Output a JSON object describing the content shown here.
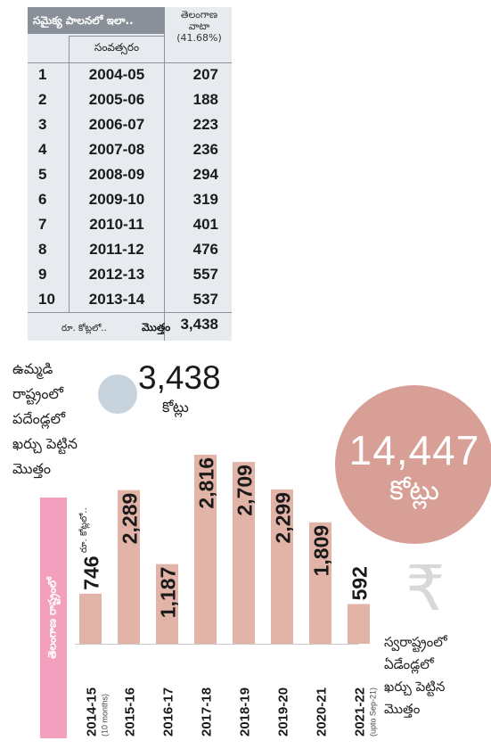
{
  "table": {
    "title": "సమైక్య పాలనలో ఇలా..",
    "share_header": [
      "తెలంగాణ",
      "వాటా",
      "(41.68%)"
    ],
    "year_header": "సంవత్సరం",
    "rows": [
      {
        "num": "1",
        "year": "2004-05",
        "value": "207"
      },
      {
        "num": "2",
        "year": "2005-06",
        "value": "188"
      },
      {
        "num": "3",
        "year": "2006-07",
        "value": "223"
      },
      {
        "num": "4",
        "year": "2007-08",
        "value": "236"
      },
      {
        "num": "5",
        "year": "2008-09",
        "value": "294"
      },
      {
        "num": "6",
        "year": "2009-10",
        "value": "319"
      },
      {
        "num": "7",
        "year": "2010-11",
        "value": "401"
      },
      {
        "num": "8",
        "year": "2011-12",
        "value": "476"
      },
      {
        "num": "9",
        "year": "2012-13",
        "value": "557"
      },
      {
        "num": "10",
        "year": "2013-14",
        "value": "537"
      }
    ],
    "unit_label": "రూ. కోట్లలో..",
    "total_label": "మొత్తం",
    "total_value": "3,438"
  },
  "united_state": {
    "caption_lines": [
      "ఉమ్మడి",
      "రాష్ట్రంలో",
      "పదేండ్లలో",
      "ఖర్చు పెట్టిన",
      "మొత్తం"
    ],
    "total": "3,438",
    "unit": "కోట్లు"
  },
  "telangana": {
    "total": "14,447",
    "unit": "కోట్లు",
    "caption_lines": [
      "స్వరాష్ట్రంలో",
      "ఏడేండ్లలో",
      "ఖర్చు పెట్టిన",
      "మొత్తం"
    ],
    "side_label": "తెలంగాణ రాష్ట్రంలో",
    "chart_unit": "రూ. కోట్లలో.."
  },
  "icons": {
    "rupee": "rupee-icon"
  },
  "colors": {
    "bar": "#e2b3a7",
    "big_circle": "#d79f96",
    "small_circle": "#c7d3dd",
    "side_label": "#f2a0be",
    "table_bg": "#e7ebf0"
  },
  "chart_data": {
    "type": "bar",
    "categories": [
      "2014-15",
      "2015-16",
      "2016-17",
      "2017-18",
      "2018-19",
      "2019-20",
      "2020-21",
      "2021-22"
    ],
    "category_notes": [
      "(10 months)",
      "",
      "",
      "",
      "",
      "",
      "",
      "(upto Sep-21)"
    ],
    "values": [
      746,
      2289,
      1187,
      2816,
      2709,
      2299,
      1809,
      592
    ],
    "value_labels": [
      "746",
      "2,289",
      "1,187",
      "2,816",
      "2,709",
      "2,299",
      "1,809",
      "592"
    ],
    "ylabel": "రూ. కోట్లలో..",
    "ylim": [
      0,
      2816
    ]
  }
}
